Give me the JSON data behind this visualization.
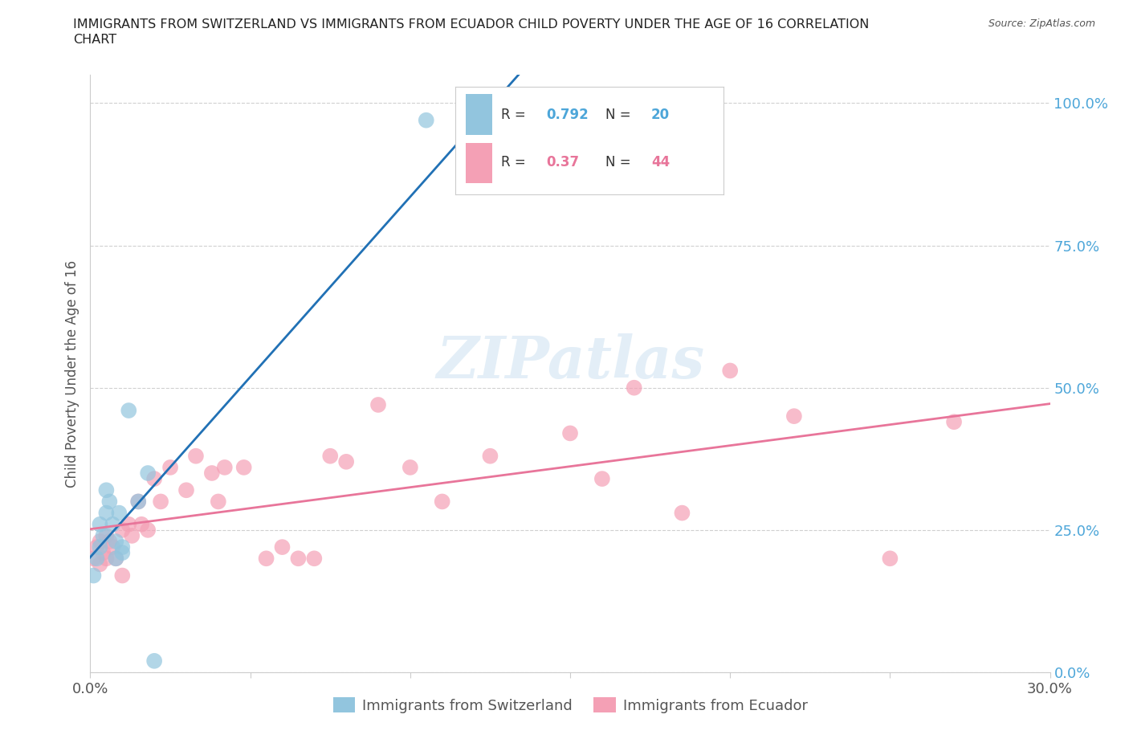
{
  "title_line1": "IMMIGRANTS FROM SWITZERLAND VS IMMIGRANTS FROM ECUADOR CHILD POVERTY UNDER THE AGE OF 16 CORRELATION",
  "title_line2": "CHART",
  "source": "Source: ZipAtlas.com",
  "ylabel": "Child Poverty Under the Age of 16",
  "xlim": [
    0.0,
    0.3
  ],
  "ylim": [
    0.0,
    1.05
  ],
  "yticks": [
    0.0,
    0.25,
    0.5,
    0.75,
    1.0
  ],
  "ytick_labels": [
    "0.0%",
    "25.0%",
    "50.0%",
    "75.0%",
    "100.0%"
  ],
  "xtick_left_label": "0.0%",
  "xtick_right_label": "30.0%",
  "legend_labels": [
    "Immigrants from Switzerland",
    "Immigrants from Ecuador"
  ],
  "R_switzerland": 0.792,
  "N_switzerland": 20,
  "R_ecuador": 0.37,
  "N_ecuador": 44,
  "color_switzerland": "#92c5de",
  "color_ecuador": "#f4a0b5",
  "line_color_switzerland": "#2171b5",
  "line_color_ecuador": "#e8759a",
  "background_color": "#ffffff",
  "grid_color": "#d0d0d0",
  "title_color": "#222222",
  "label_color": "#555555",
  "ytick_color": "#4da6d9",
  "switzerland_x": [
    0.001,
    0.002,
    0.003,
    0.003,
    0.004,
    0.005,
    0.005,
    0.006,
    0.007,
    0.008,
    0.008,
    0.009,
    0.01,
    0.01,
    0.012,
    0.015,
    0.018,
    0.02,
    0.105,
    0.13
  ],
  "switzerland_y": [
    0.17,
    0.2,
    0.22,
    0.26,
    0.24,
    0.28,
    0.32,
    0.3,
    0.26,
    0.2,
    0.23,
    0.28,
    0.22,
    0.21,
    0.46,
    0.3,
    0.35,
    0.02,
    0.97,
    0.97
  ],
  "ecuador_x": [
    0.001,
    0.002,
    0.003,
    0.003,
    0.004,
    0.005,
    0.005,
    0.006,
    0.007,
    0.008,
    0.01,
    0.01,
    0.012,
    0.013,
    0.015,
    0.016,
    0.018,
    0.02,
    0.022,
    0.025,
    0.03,
    0.033,
    0.038,
    0.04,
    0.042,
    0.048,
    0.055,
    0.06,
    0.065,
    0.07,
    0.075,
    0.08,
    0.09,
    0.1,
    0.11,
    0.125,
    0.15,
    0.16,
    0.17,
    0.185,
    0.2,
    0.22,
    0.25,
    0.27
  ],
  "ecuador_y": [
    0.2,
    0.22,
    0.19,
    0.23,
    0.21,
    0.24,
    0.2,
    0.23,
    0.22,
    0.2,
    0.17,
    0.25,
    0.26,
    0.24,
    0.3,
    0.26,
    0.25,
    0.34,
    0.3,
    0.36,
    0.32,
    0.38,
    0.35,
    0.3,
    0.36,
    0.36,
    0.2,
    0.22,
    0.2,
    0.2,
    0.38,
    0.37,
    0.47,
    0.36,
    0.3,
    0.38,
    0.42,
    0.34,
    0.5,
    0.28,
    0.53,
    0.45,
    0.2,
    0.44
  ],
  "sw_line_x": [
    -0.005,
    0.155
  ],
  "ec_line_x": [
    0.0,
    0.3
  ],
  "watermark_text": "ZIPatlas",
  "watermark_color": "#c8dff0",
  "watermark_alpha": 0.5
}
